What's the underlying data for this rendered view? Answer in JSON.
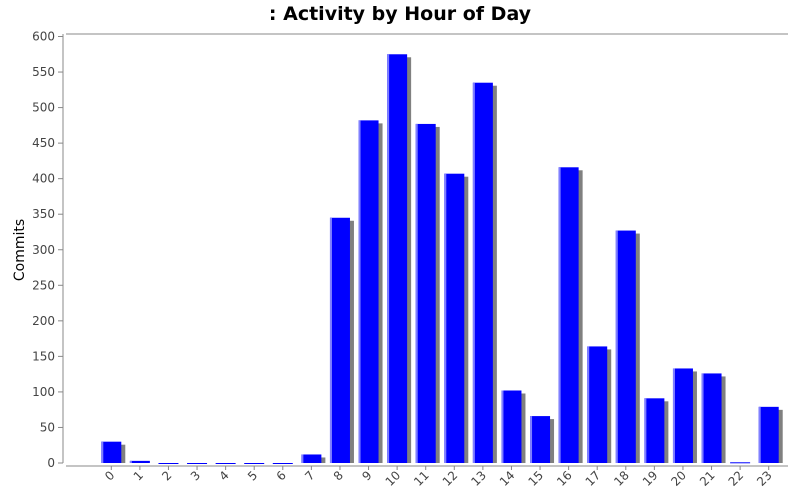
{
  "chart_data": {
    "type": "bar",
    "title": ": Activity by Hour of Day",
    "xlabel": "",
    "ylabel": "Commits",
    "ylim": [
      0,
      600
    ],
    "y_ticks": [
      "0",
      "50",
      "100",
      "150",
      "200",
      "250",
      "300",
      "350",
      "400",
      "450",
      "500",
      "550",
      "600"
    ],
    "categories": [
      "0",
      "1",
      "2",
      "3",
      "4",
      "5",
      "6",
      "7",
      "8",
      "9",
      "10",
      "11",
      "12",
      "13",
      "14",
      "15",
      "16",
      "17",
      "18",
      "19",
      "20",
      "21",
      "22",
      "23"
    ],
    "values": [
      30,
      3,
      0,
      0,
      0,
      0,
      0,
      12,
      345,
      482,
      575,
      477,
      407,
      535,
      102,
      66,
      416,
      164,
      327,
      91,
      133,
      126,
      1,
      79
    ],
    "grid": false,
    "legend": "none",
    "colors": {
      "bar": "#0000ff",
      "bar_highlight": "#8080ff",
      "bar_shadow": "#808080",
      "axis": "#888888"
    }
  }
}
